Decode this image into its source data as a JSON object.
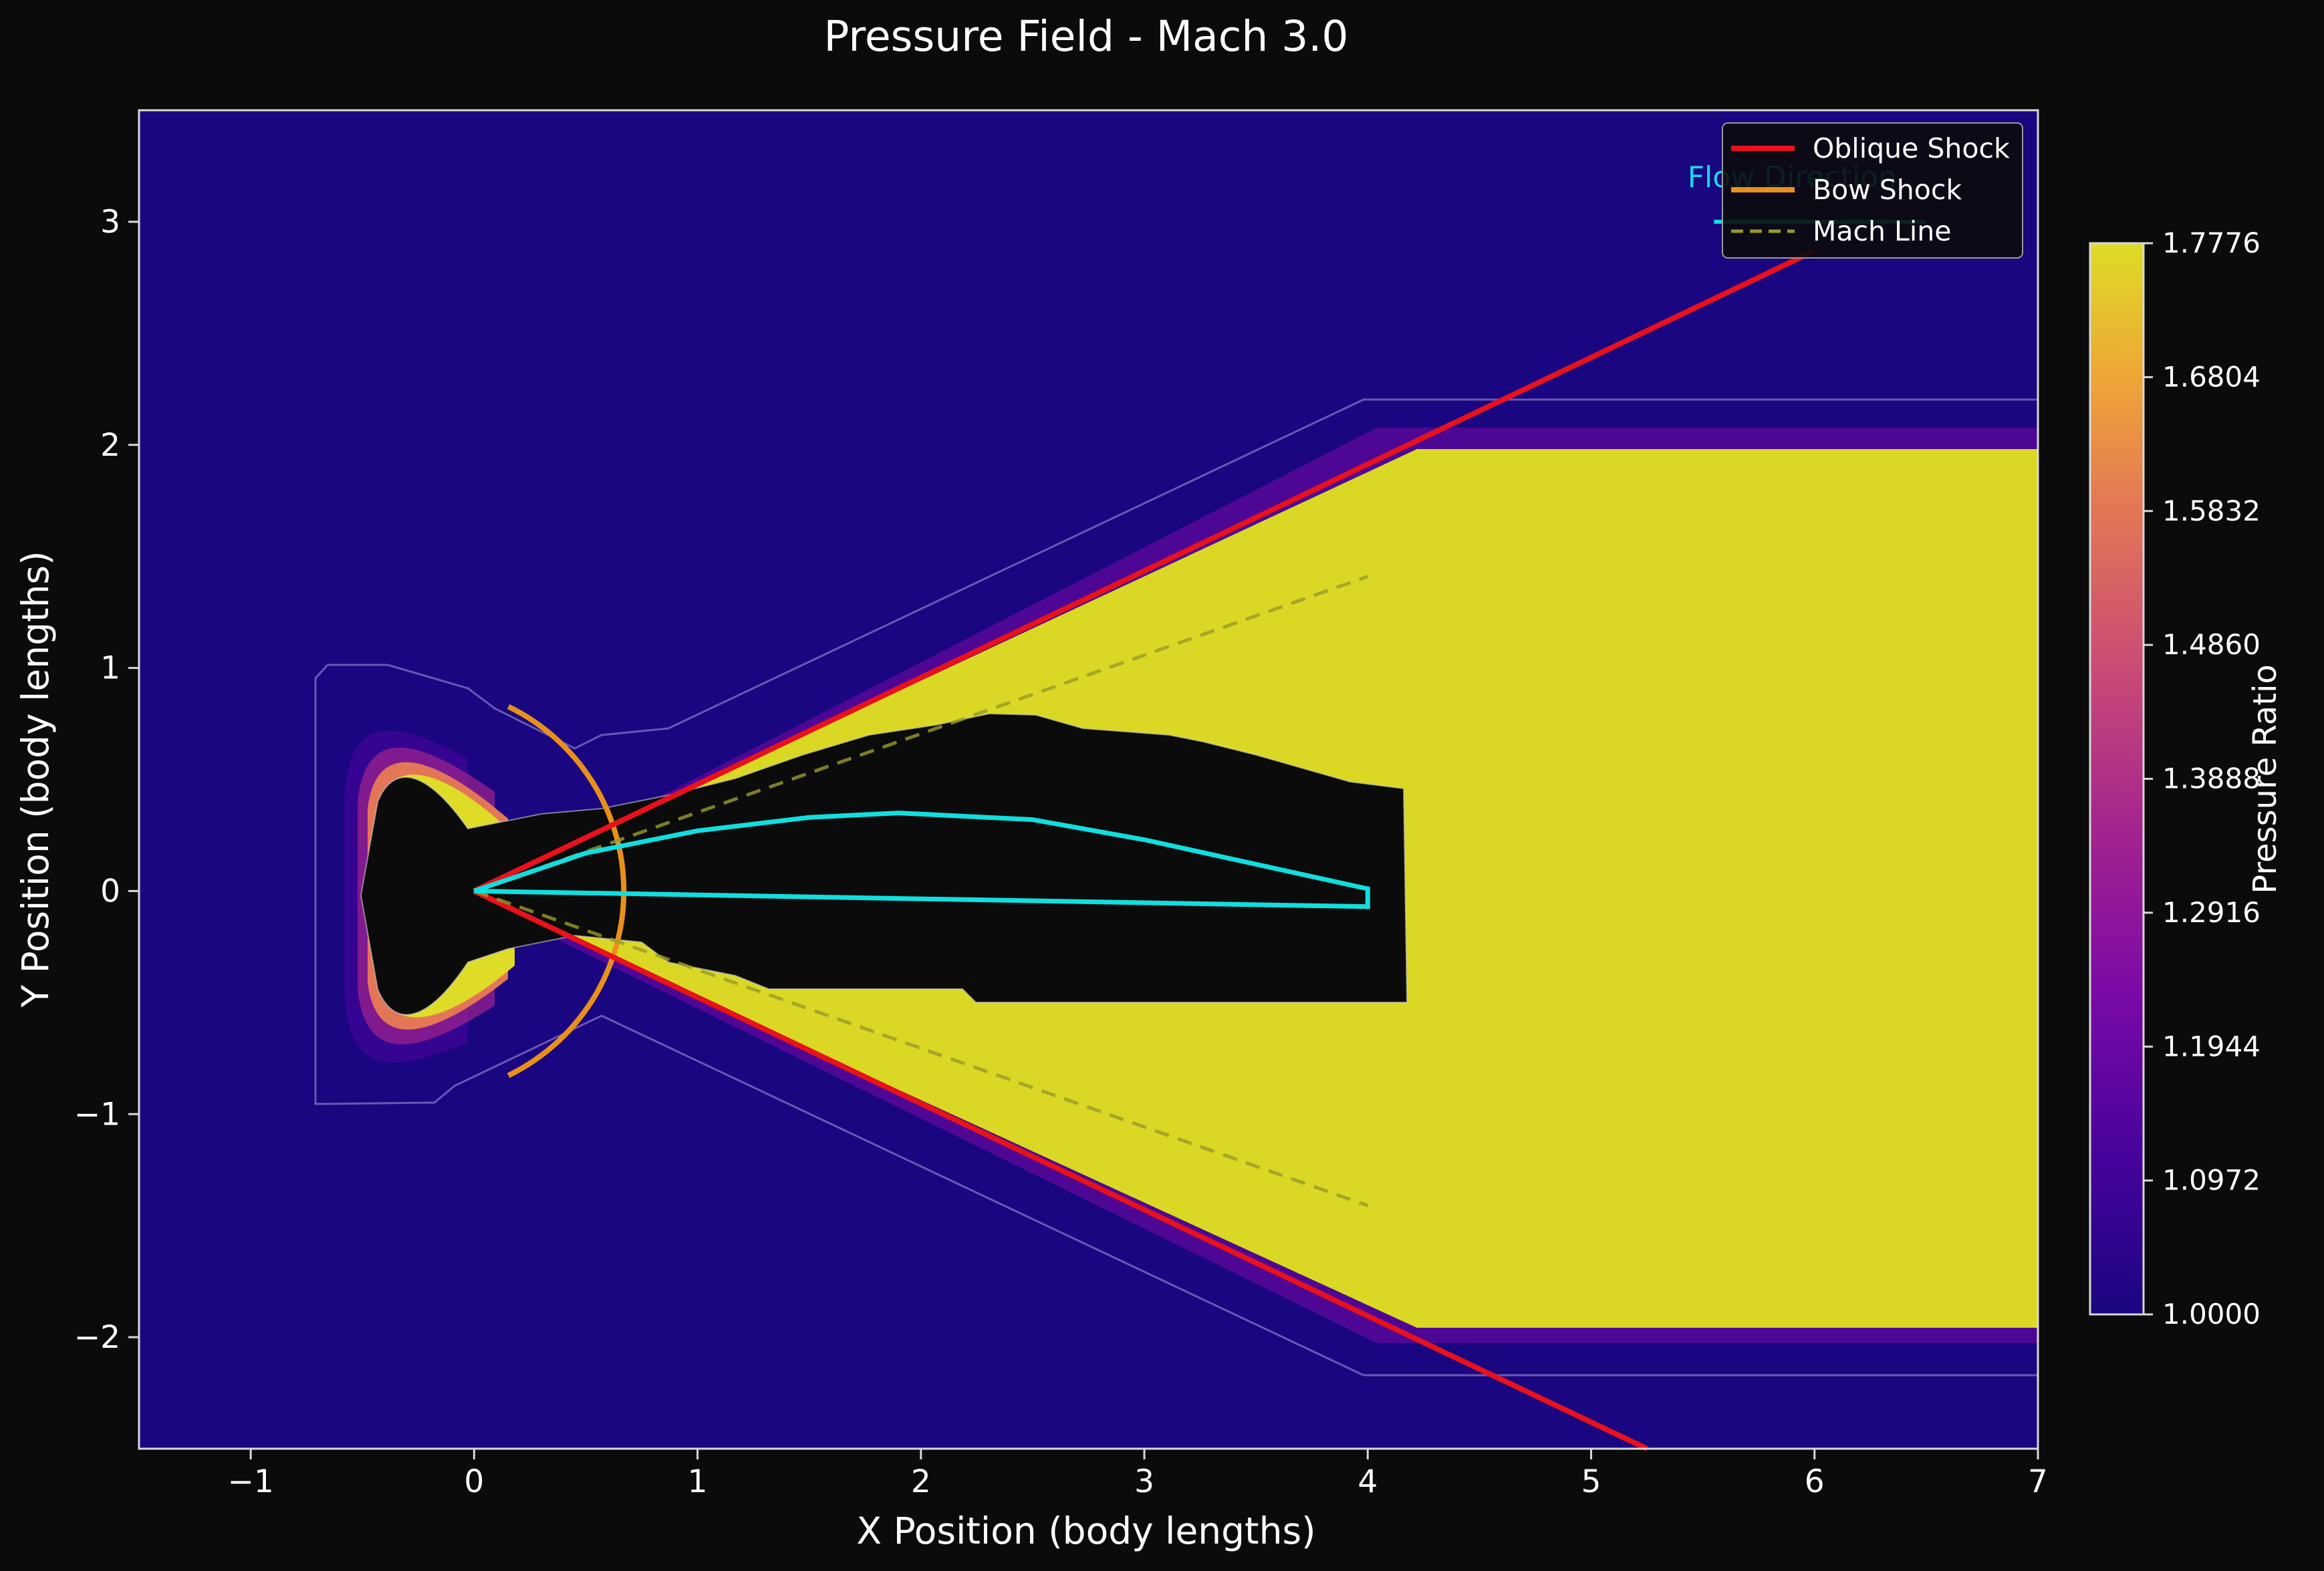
{
  "chart_data": {
    "type": "heatmap",
    "title": "Pressure Field - Mach 3.0",
    "xlabel": "X Position (body lengths)",
    "ylabel": "Y Position (body lengths)",
    "xlim": [
      -1.5,
      7
    ],
    "ylim": [
      -2.5,
      3.5
    ],
    "x_ticks": [
      -1,
      0,
      1,
      2,
      3,
      4,
      5,
      6,
      7
    ],
    "x_tick_labels": [
      "−1",
      "0",
      "1",
      "2",
      "3",
      "4",
      "5",
      "6",
      "7"
    ],
    "y_ticks": [
      -2,
      -1,
      0,
      1,
      2,
      3
    ],
    "y_tick_labels": [
      "−2",
      "−1",
      "0",
      "1",
      "2",
      "3"
    ],
    "grid": false,
    "colorbar": {
      "label": "Pressure Ratio",
      "min": 1.0,
      "max": 1.7776,
      "colormap": "plasma",
      "ticks": [
        "1.0000",
        "1.0972",
        "1.1944",
        "1.2916",
        "1.3888",
        "1.4860",
        "1.5832",
        "1.6804",
        "1.7776"
      ]
    },
    "field": {
      "freestream_value": 1.0,
      "post_shock_value": 1.7776,
      "wake_region_x": [
        4.2,
        7
      ],
      "wake_region_y": [
        -2.0,
        2.0
      ]
    },
    "series": [
      {
        "name": "Oblique Shock",
        "color": "#e8111c",
        "style": "solid",
        "segments": [
          {
            "x": [
              0,
              6.0
            ],
            "y": [
              0,
              2.87
            ]
          },
          {
            "x": [
              0,
              5.25
            ],
            "y": [
              0,
              -2.5
            ]
          }
        ]
      },
      {
        "name": "Bow Shock",
        "color": "#e8901c",
        "style": "solid",
        "arc": {
          "center": [
            -0.25,
            0
          ],
          "radius": 0.92,
          "theta_deg": [
            -64,
            64
          ]
        }
      },
      {
        "name": "Mach Line",
        "color": "#9a9a2a",
        "style": "dashed",
        "segments": [
          {
            "x": [
              0,
              4.0
            ],
            "y": [
              0,
              1.41
            ]
          },
          {
            "x": [
              0,
              4.0
            ],
            "y": [
              0,
              -1.41
            ]
          }
        ]
      }
    ],
    "body": {
      "color": "#11dede",
      "upper": {
        "x": [
          0,
          0.5,
          1.0,
          1.5,
          1.9,
          2.5,
          3.0,
          3.5,
          4.0
        ],
        "y": [
          0,
          0.17,
          0.27,
          0.33,
          0.35,
          0.32,
          0.23,
          0.12,
          0.01
        ]
      },
      "lower": {
        "x": [
          0,
          4.0
        ],
        "y": [
          0,
          -0.07
        ]
      }
    },
    "annotation": {
      "text": "Flow Direction",
      "color": "#1ad6e6",
      "x": 5.9,
      "y": 3.2,
      "arrow": {
        "x": [
          5.55,
          6.5
        ],
        "y": [
          3.0,
          3.0
        ]
      }
    },
    "legend_position": "top-right"
  }
}
